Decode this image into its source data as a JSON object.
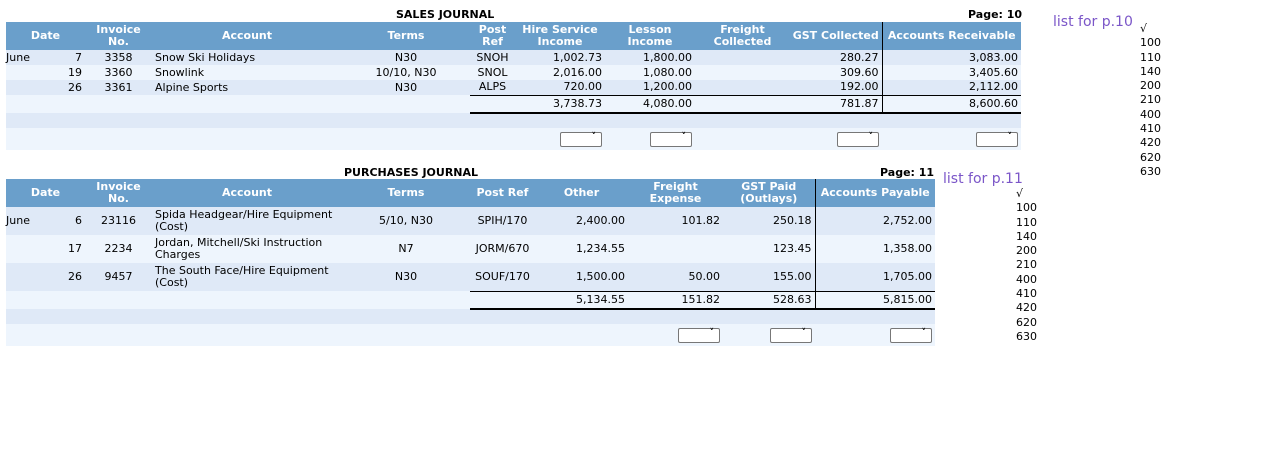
{
  "sales": {
    "title": "SALES JOURNAL",
    "page": "Page: 10",
    "headers": [
      "Date",
      "Invoice No.",
      "Account",
      "Terms",
      "Post Ref",
      "Hire Service Income",
      "Lesson Income",
      "Freight Collected",
      "GST Collected",
      "Accounts Receivable"
    ],
    "rows": [
      [
        "June",
        "7",
        "3358",
        "Snow Ski Holidays",
        "N30",
        "SNOH",
        "1,002.73",
        "1,800.00",
        "",
        "280.27",
        "3,083.00"
      ],
      [
        "",
        "19",
        "3360",
        "Snowlink",
        "10/10, N30",
        "SNOL",
        "2,016.00",
        "1,080.00",
        "",
        "309.60",
        "3,405.60"
      ],
      [
        "",
        "26",
        "3361",
        "Alpine Sports",
        "N30",
        "ALPS",
        "720.00",
        "1,200.00",
        "",
        "192.00",
        "2,112.00"
      ]
    ],
    "totals": [
      "3,738.73",
      "4,080.00",
      "",
      "781.87",
      "8,600.60"
    ],
    "link": "list for p.10"
  },
  "purchases": {
    "title": "PURCHASES JOURNAL",
    "page": "Page: 11",
    "headers": [
      "Date",
      "Invoice No.",
      "Account",
      "Terms",
      "Post Ref",
      "Other",
      "Freight Expense",
      "GST Paid (Outlays)",
      "Accounts Payable"
    ],
    "rows": [
      [
        "June",
        "6",
        "23116",
        "Spida Headgear/Hire Equipment (Cost)",
        "5/10, N30",
        "SPIH/170",
        "2,400.00",
        "101.82",
        "250.18",
        "2,752.00"
      ],
      [
        "",
        "17",
        "2234",
        "Jordan, Mitchell/Ski Instruction Charges",
        "N7",
        "JORM/670",
        "1,234.55",
        "",
        "123.45",
        "1,358.00"
      ],
      [
        "",
        "26",
        "9457",
        "The South Face/Hire Equipment (Cost)",
        "N30",
        "SOUF/170",
        "1,500.00",
        "50.00",
        "155.00",
        "1,705.00"
      ]
    ],
    "totals": [
      "5,134.55",
      "151.82",
      "528.63",
      "5,815.00"
    ],
    "link": "list for p.11"
  },
  "account_list": [
    "√",
    "100",
    "110",
    "140",
    "200",
    "210",
    "400",
    "410",
    "420",
    "620",
    "630"
  ],
  "colors": {
    "header": "#6a9fcb",
    "row_a": "#dfe9f7",
    "row_b": "#eef5fd",
    "link": "#7b56c8"
  }
}
